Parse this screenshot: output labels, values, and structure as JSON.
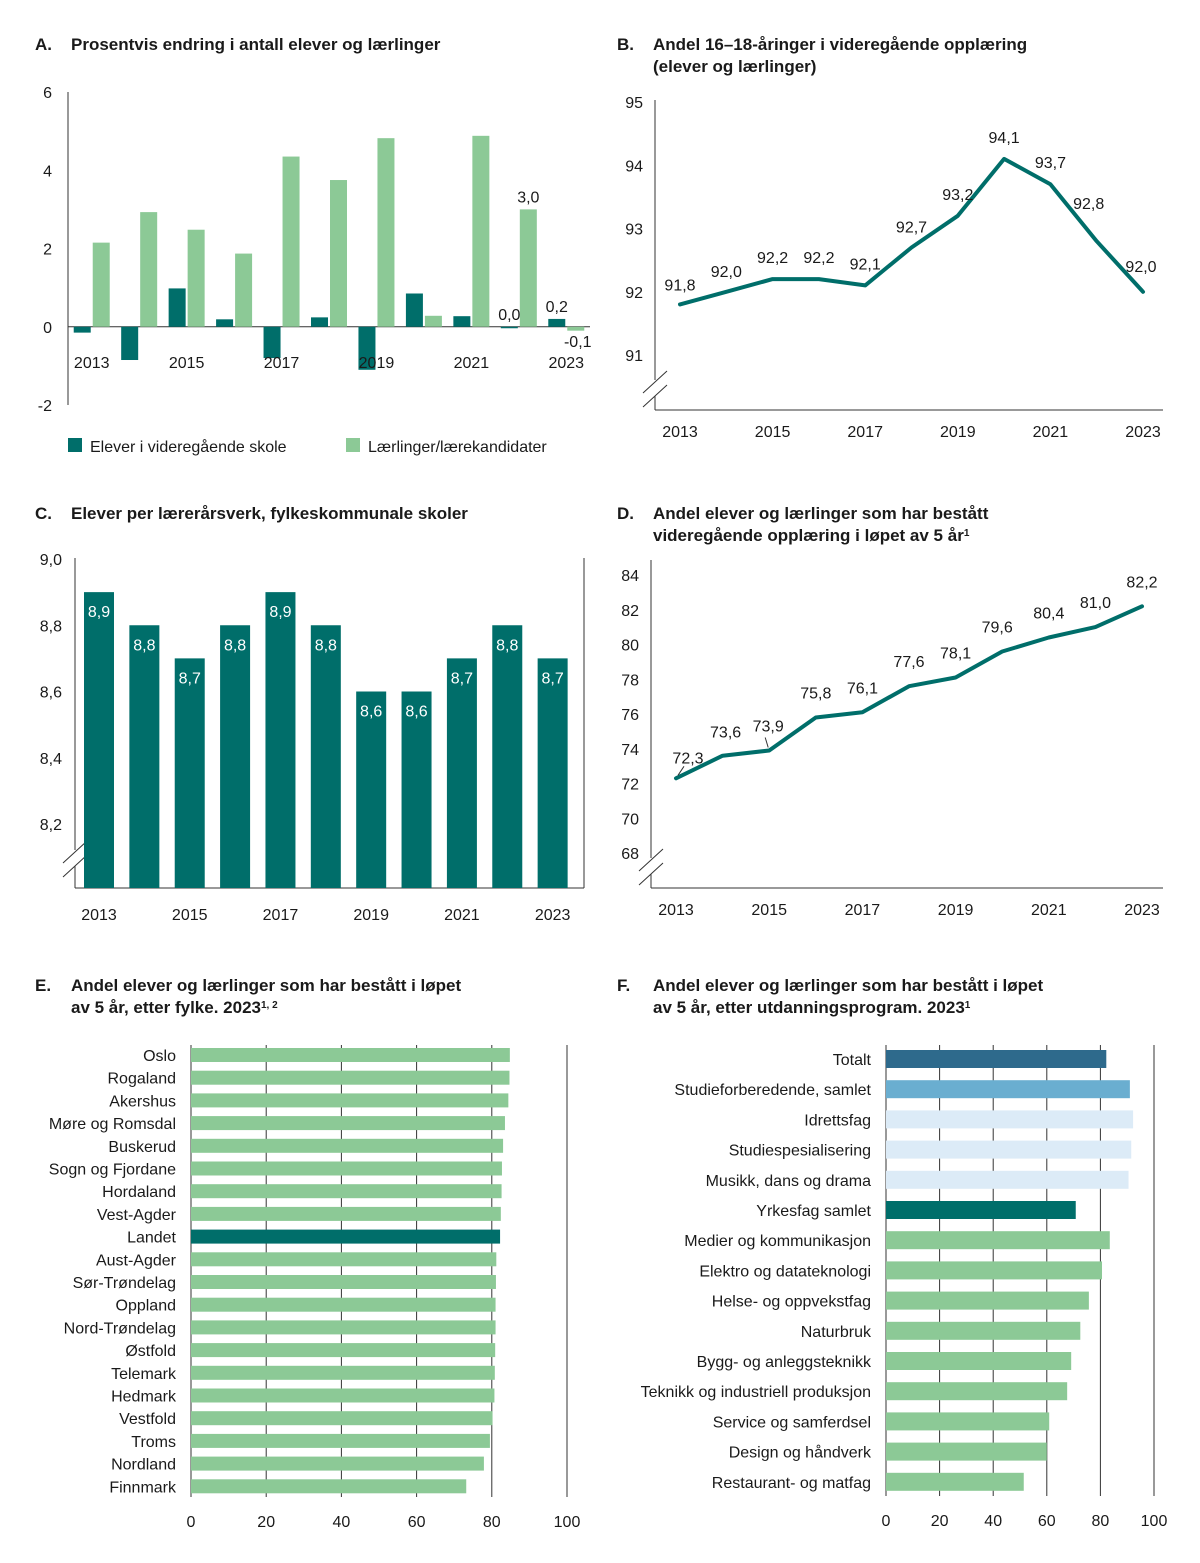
{
  "colors": {
    "dark_green": "#006e6a",
    "light_green": "#8cc996",
    "navy": "#2e6a8c",
    "mid_blue": "#6aaed0",
    "pale_blue": "#dcebf7"
  },
  "chart_data": [
    {
      "id": "A",
      "type": "bar",
      "letter": "A.",
      "title": "Prosentvis endring i antall elever og lærlinger",
      "categories": [
        "2013",
        "2014",
        "2015",
        "2016",
        "2017",
        "2018",
        "2019",
        "2020",
        "2021",
        "2022",
        "2023"
      ],
      "x_tick_labels": [
        "2013",
        "2015",
        "2017",
        "2019",
        "2021",
        "2023"
      ],
      "y_ticks": [
        "6",
        "4",
        "2",
        "0",
        "-2"
      ],
      "ylim": [
        -2,
        6
      ],
      "series": [
        {
          "name": "Elever i videregående skole",
          "color_key": "dark_green",
          "values": [
            -0.15,
            -0.85,
            0.98,
            0.19,
            -0.8,
            0.24,
            -1.1,
            0.85,
            0.27,
            0.0,
            0.2
          ]
        },
        {
          "name": "Lærlinger/lærekandidater",
          "color_key": "light_green",
          "values": [
            2.15,
            2.93,
            2.48,
            1.87,
            4.35,
            3.75,
            4.82,
            0.28,
            4.88,
            3.0,
            -0.1
          ]
        }
      ],
      "data_labels": [
        {
          "series": 1,
          "index": 9,
          "text": "3,0"
        },
        {
          "series": 0,
          "index": 9,
          "text": "0,0"
        },
        {
          "series": 0,
          "index": 10,
          "text": "0,2"
        },
        {
          "series": 1,
          "index": 10,
          "text": "-0,1"
        }
      ],
      "legend": [
        "Elever i videregående skole",
        "Lærlinger/lærekandidater"
      ]
    },
    {
      "id": "B",
      "type": "line",
      "letter": "B.",
      "title_lines": [
        "Andel 16–18-åringer i videregående opplæring",
        "(elever og lærlinger)"
      ],
      "x": [
        2013,
        2014,
        2015,
        2016,
        2017,
        2018,
        2019,
        2020,
        2021,
        2022,
        2023
      ],
      "values": [
        91.8,
        92.0,
        92.2,
        92.2,
        92.1,
        92.7,
        93.2,
        94.1,
        93.7,
        92.8,
        92.0
      ],
      "labels": [
        "91,8",
        "92,0",
        "92,2",
        "92,2",
        "92,1",
        "92,7",
        "93,2",
        "94,1",
        "93,7",
        "92,8",
        "92,0"
      ],
      "x_tick_labels": [
        "2013",
        "2015",
        "2017",
        "2019",
        "2021",
        "2023"
      ],
      "y_ticks": [
        "95",
        "94",
        "93",
        "92",
        "91"
      ],
      "ylim": [
        91,
        95
      ],
      "axis_break": true
    },
    {
      "id": "C",
      "type": "bar",
      "letter": "C.",
      "title": "Elever per lærerårsverk, fylkeskommunale skoler",
      "categories": [
        "2013",
        "2014",
        "2015",
        "2016",
        "2017",
        "2018",
        "2019",
        "2020",
        "2021",
        "2022",
        "2023"
      ],
      "values": [
        8.9,
        8.8,
        8.7,
        8.8,
        8.9,
        8.8,
        8.6,
        8.6,
        8.7,
        8.8,
        8.7
      ],
      "labels": [
        "8,9",
        "8,8",
        "8,7",
        "8,8",
        "8,9",
        "8,8",
        "8,6",
        "8,6",
        "8,7",
        "8,8",
        "8,7"
      ],
      "x_tick_labels": [
        "2013",
        "2015",
        "2017",
        "2019",
        "2021",
        "2023"
      ],
      "y_ticks": [
        "9,0",
        "8,8",
        "8,6",
        "8,4",
        "8,2"
      ],
      "ylim": [
        8.2,
        9.0
      ],
      "axis_break": true
    },
    {
      "id": "D",
      "type": "line",
      "letter": "D.",
      "title_lines": [
        "Andel elever og lærlinger som har bestått",
        "videregående opplæring i løpet av 5 år"
      ],
      "title_sup": "1",
      "x": [
        2013,
        2014,
        2015,
        2016,
        2017,
        2018,
        2019,
        2020,
        2021,
        2022,
        2023
      ],
      "values": [
        72.3,
        73.6,
        73.9,
        75.8,
        76.1,
        77.6,
        78.1,
        79.6,
        80.4,
        81.0,
        82.2
      ],
      "labels": [
        "72,3",
        "73,6",
        "73,9",
        "75,8",
        "76,1",
        "77,6",
        "78,1",
        "79,6",
        "80,4",
        "81,0",
        "82,2"
      ],
      "x_tick_labels": [
        "2013",
        "2015",
        "2017",
        "2019",
        "2021",
        "2023"
      ],
      "y_ticks": [
        "84",
        "82",
        "80",
        "78",
        "76",
        "74",
        "72",
        "70",
        "68"
      ],
      "ylim": [
        68,
        84
      ],
      "axis_break": true
    },
    {
      "id": "E",
      "type": "bar",
      "orientation": "horizontal",
      "letter": "E.",
      "title_lines": [
        "Andel elever og lærlinger som har bestått i løpet",
        "av 5 år, etter fylke. 2023"
      ],
      "title_sup": "1, 2",
      "categories": [
        "Oslo",
        "Rogaland",
        "Akershus",
        "Møre og Romsdal",
        "Buskerud",
        "Sogn og Fjordane",
        "Hordaland",
        "Vest-Agder",
        "Landet",
        "Aust-Agder",
        "Sør-Trøndelag",
        "Oppland",
        "Nord-Trøndelag",
        "Østfold",
        "Telemark",
        "Hedmark",
        "Vestfold",
        "Troms",
        "Nordland",
        "Finnmark"
      ],
      "values": [
        84.8,
        84.7,
        84.4,
        83.5,
        83.0,
        82.7,
        82.6,
        82.4,
        82.2,
        81.2,
        81.1,
        81.0,
        81.0,
        80.9,
        80.8,
        80.7,
        80.2,
        79.5,
        77.9,
        73.2
      ],
      "highlight_index": 8,
      "x_ticks": [
        "0",
        "20",
        "40",
        "60",
        "80",
        "100"
      ],
      "xlim": [
        0,
        100
      ]
    },
    {
      "id": "F",
      "type": "bar",
      "orientation": "horizontal",
      "letter": "F.",
      "title_lines": [
        "Andel elever og lærlinger som har bestått i løpet",
        "av 5 år, etter utdanningsprogram. 2023"
      ],
      "title_sup": "1",
      "categories": [
        "Totalt",
        "Studieforberedende, samlet",
        "Idrettsfag",
        "Studiespesialisering",
        "Musikk, dans og drama",
        "Yrkesfag samlet",
        "Medier og kommunikasjon",
        "Elektro og datateknologi",
        "Helse- og oppvekstfag",
        "Naturbruk",
        "Bygg- og anleggsteknikk",
        "Teknikk og industriell produksjon",
        "Service og samferdsel",
        "Design og håndverk",
        "Restaurant- og matfag"
      ],
      "values": [
        82.2,
        91.0,
        92.2,
        91.5,
        90.5,
        70.8,
        83.5,
        80.6,
        75.7,
        72.5,
        69.1,
        67.6,
        60.9,
        60.0,
        51.4
      ],
      "bar_color_keys": [
        "navy",
        "mid_blue",
        "pale_blue",
        "pale_blue",
        "pale_blue",
        "dark_green",
        "light_green",
        "light_green",
        "light_green",
        "light_green",
        "light_green",
        "light_green",
        "light_green",
        "light_green",
        "light_green"
      ],
      "x_ticks": [
        "0",
        "20",
        "40",
        "60",
        "80",
        "100"
      ],
      "xlim": [
        0,
        100
      ]
    }
  ]
}
